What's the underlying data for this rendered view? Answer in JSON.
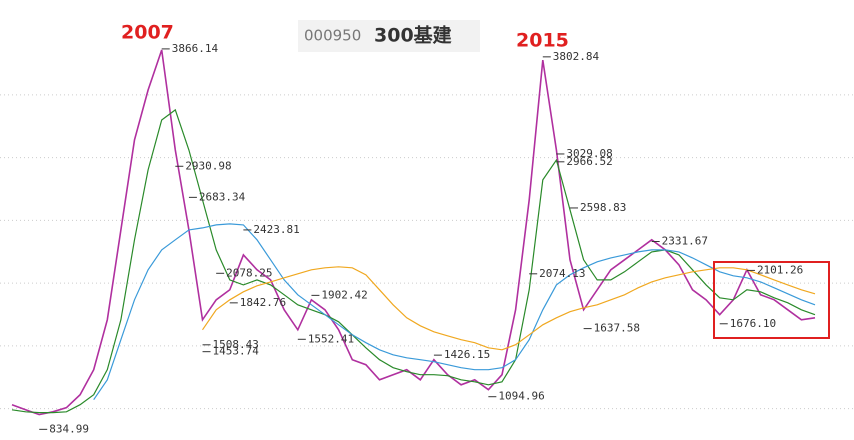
{
  "chart_data": {
    "type": "line",
    "code": "000950",
    "title": "300基建",
    "annotations": [
      "2007",
      "2015"
    ],
    "ylim": [
      750,
      4200
    ],
    "yticks": [
      1000,
      1500,
      2000,
      2500,
      3000,
      3500
    ],
    "grid": true,
    "series": [
      {
        "color": "#b0309f",
        "values": [
          1031,
          991,
          952,
          975,
          1007,
          1111,
          1310,
          1708,
          2424,
          3141,
          3539,
          3857,
          3061,
          2424,
          1708,
          1867,
          1947,
          2225,
          2106,
          2026,
          1787,
          1628,
          1867,
          1787,
          1628,
          1390,
          1350,
          1230,
          1270,
          1310,
          1230,
          1390,
          1270,
          1190,
          1230,
          1151,
          1270,
          1787,
          2663,
          3777,
          3061,
          2186,
          1787,
          1947,
          2106,
          2186,
          2265,
          2345,
          2265,
          2146,
          1947,
          1867,
          1748,
          1867,
          2106,
          1907,
          1867,
          1787,
          1708,
          1724
        ]
      },
      {
        "color": "#2a8a2a",
        "values": [
          991,
          975,
          968,
          968,
          975,
          1031,
          1111,
          1310,
          1708,
          2345,
          2902,
          3300,
          3380,
          3061,
          2663,
          2265,
          2026,
          1986,
          2026,
          1986,
          1907,
          1827,
          1787,
          1748,
          1692,
          1588,
          1485,
          1390,
          1326,
          1294,
          1270,
          1270,
          1262,
          1230,
          1214,
          1190,
          1214,
          1390,
          1947,
          2822,
          2981,
          2584,
          2186,
          2026,
          2026,
          2090,
          2170,
          2249,
          2265,
          2225,
          2106,
          1986,
          1883,
          1867,
          1947,
          1931,
          1883,
          1843,
          1787,
          1748
        ]
      },
      {
        "color": "#3a9ad9",
        "values": [
          null,
          null,
          null,
          null,
          null,
          null,
          1071,
          1230,
          1549,
          1867,
          2106,
          2265,
          2345,
          2424,
          2440,
          2464,
          2472,
          2464,
          2345,
          2186,
          2026,
          1907,
          1827,
          1748,
          1668,
          1588,
          1525,
          1469,
          1429,
          1405,
          1390,
          1374,
          1350,
          1326,
          1310,
          1310,
          1326,
          1390,
          1549,
          1787,
          1986,
          2066,
          2122,
          2170,
          2201,
          2225,
          2249,
          2265,
          2265,
          2249,
          2201,
          2146,
          2090,
          2058,
          2042,
          2010,
          1963,
          1915,
          1867,
          1827
        ]
      },
      {
        "color": "#f0a820",
        "values": [
          null,
          null,
          null,
          null,
          null,
          null,
          null,
          null,
          null,
          null,
          null,
          null,
          null,
          null,
          1628,
          1787,
          1867,
          1931,
          1979,
          2010,
          2042,
          2074,
          2106,
          2122,
          2130,
          2122,
          2066,
          1947,
          1827,
          1724,
          1660,
          1612,
          1580,
          1549,
          1525,
          1485,
          1469,
          1509,
          1588,
          1668,
          1724,
          1772,
          1803,
          1827,
          1867,
          1907,
          1963,
          2010,
          2042,
          2066,
          2090,
          2106,
          2122,
          2122,
          2106,
          2066,
          2026,
          1986,
          1947,
          1915
        ]
      }
    ],
    "price_labels": [
      {
        "at": 11,
        "value": 3866.14,
        "label": "3866.14"
      },
      {
        "at": 12,
        "value": 2930.98,
        "label": "2930.98"
      },
      {
        "at": 13,
        "value": 2683.34,
        "label": "2683.34"
      },
      {
        "at": 17,
        "value": 2423.81,
        "label": "2423.81"
      },
      {
        "at": 15,
        "value": 2078.25,
        "label": "2078.25"
      },
      {
        "at": 16,
        "value": 1842.76,
        "label": "1842.76"
      },
      {
        "at": 14,
        "value": 1508.43,
        "label": "1508.43"
      },
      {
        "at": 14,
        "value": 1453.74,
        "label": "1453.74"
      },
      {
        "at": 21,
        "value": 1552.41,
        "label": "1552.41"
      },
      {
        "at": 22,
        "value": 1902.42,
        "label": "1902.42"
      },
      {
        "at": 31,
        "value": 1426.15,
        "label": "1426.15"
      },
      {
        "at": 35,
        "value": 1094.96,
        "label": "1094.96"
      },
      {
        "at": 2,
        "value": 834.99,
        "label": "834.99"
      },
      {
        "at": 39,
        "value": 3802.84,
        "label": "3802.84"
      },
      {
        "at": 40,
        "value": 3029.08,
        "label": "3029.08"
      },
      {
        "at": 40,
        "value": 2966.52,
        "label": "2966.52"
      },
      {
        "at": 41,
        "value": 2598.83,
        "label": "2598.83"
      },
      {
        "at": 47,
        "value": 2331.67,
        "label": "2331.67"
      },
      {
        "at": 38,
        "value": 2074.13,
        "label": "2074.13"
      },
      {
        "at": 42,
        "value": 1637.58,
        "label": "1637.58"
      },
      {
        "at": 52,
        "value": 1676.1,
        "label": "1676.10"
      },
      {
        "at": 54,
        "value": 2101.26,
        "label": "2101.26"
      }
    ]
  }
}
